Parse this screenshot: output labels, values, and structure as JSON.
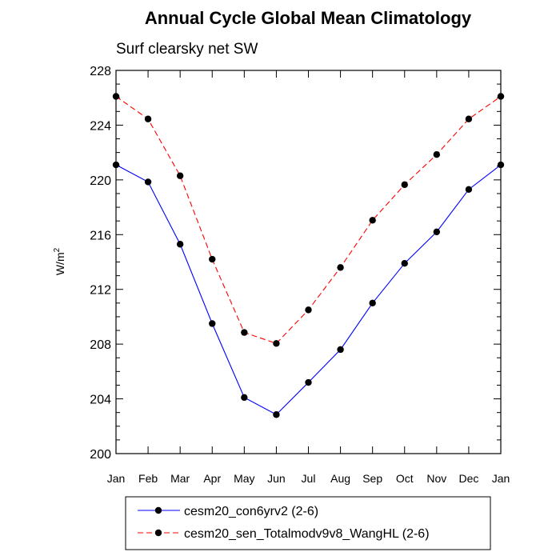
{
  "chart_data": {
    "type": "line",
    "title": "Annual Cycle Global Mean Climatology",
    "subtitle": "Surf clearsky net SW",
    "xlabel": "",
    "ylabel": "W/m",
    "ylabel_superscript": "2",
    "categories": [
      "Jan",
      "Feb",
      "Mar",
      "Apr",
      "May",
      "Jun",
      "Jul",
      "Aug",
      "Sep",
      "Oct",
      "Nov",
      "Dec",
      "Jan"
    ],
    "ylim": [
      200,
      228
    ],
    "yticks": [
      "200",
      "204",
      "208",
      "212",
      "216",
      "220",
      "224",
      "228"
    ],
    "grid": false,
    "legend_position": "bottom",
    "series": [
      {
        "name": "cesm20_con6yrv2 (2-6)",
        "color": "#0000ff",
        "style": "solid",
        "values": [
          221.1,
          219.85,
          215.3,
          209.5,
          204.1,
          202.85,
          205.2,
          207.6,
          211.0,
          213.9,
          216.2,
          219.3,
          221.1
        ]
      },
      {
        "name": "cesm20_sen_Totalmodv9v8_WangHL (2-6)",
        "color": "#ff0000",
        "style": "dashed",
        "values": [
          226.1,
          224.45,
          220.3,
          214.2,
          208.85,
          208.05,
          210.5,
          213.6,
          217.05,
          219.65,
          221.85,
          224.45,
          226.1
        ]
      }
    ]
  }
}
